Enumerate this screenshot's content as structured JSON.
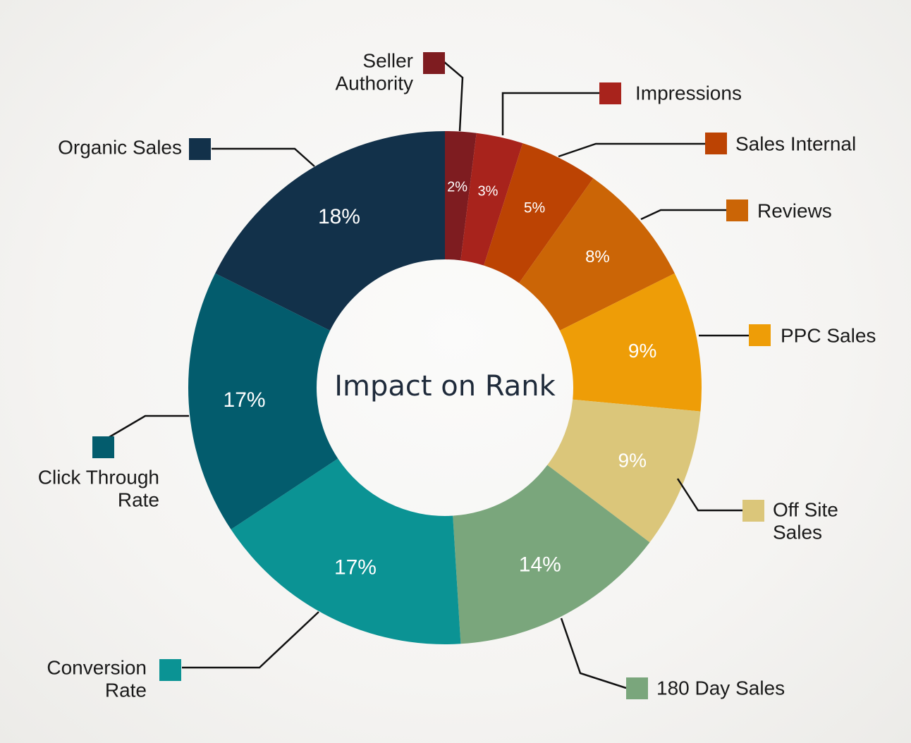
{
  "chart_data": {
    "type": "pie",
    "variant": "donut",
    "title": "Impact on Rank",
    "unit": "%",
    "slices": [
      {
        "name": "Seller Authority",
        "value": 2,
        "label": "2%",
        "color": "#7e1c20"
      },
      {
        "name": "Impressions",
        "value": 3,
        "label": "3%",
        "color": "#a8231c"
      },
      {
        "name": "Sales Internal",
        "value": 5,
        "label": "5%",
        "color": "#bc4303"
      },
      {
        "name": "Reviews",
        "value": 8,
        "label": "8%",
        "color": "#cb6506"
      },
      {
        "name": "PPC Sales",
        "value": 9,
        "label": "9%",
        "color": "#ee9d07"
      },
      {
        "name": "Off Site Sales",
        "value": 9,
        "label": "9%",
        "color": "#dbc67a"
      },
      {
        "name": "180 Day Sales",
        "value": 14,
        "label": "14%",
        "color": "#7aa67c"
      },
      {
        "name": "Conversion Rate",
        "value": 17,
        "label": "17%",
        "color": "#0b9394"
      },
      {
        "name": "Click Through Rate",
        "value": 17,
        "label": "17%",
        "color": "#035c6d"
      },
      {
        "name": "Organic Sales",
        "value": 18,
        "label": "18%",
        "color": "#12314a"
      }
    ],
    "legend_lines": [
      [
        "Seller",
        "Authority"
      ],
      [
        "Impressions"
      ],
      [
        "Sales Internal"
      ],
      [
        "Reviews"
      ],
      [
        "PPC Sales"
      ],
      [
        "Off Site",
        "Sales"
      ],
      [
        "180 Day Sales"
      ],
      [
        "Conversion",
        "Rate"
      ],
      [
        "Click Through",
        "Rate"
      ],
      [
        "Organic Sales"
      ]
    ],
    "legend": "callouts around ring"
  }
}
